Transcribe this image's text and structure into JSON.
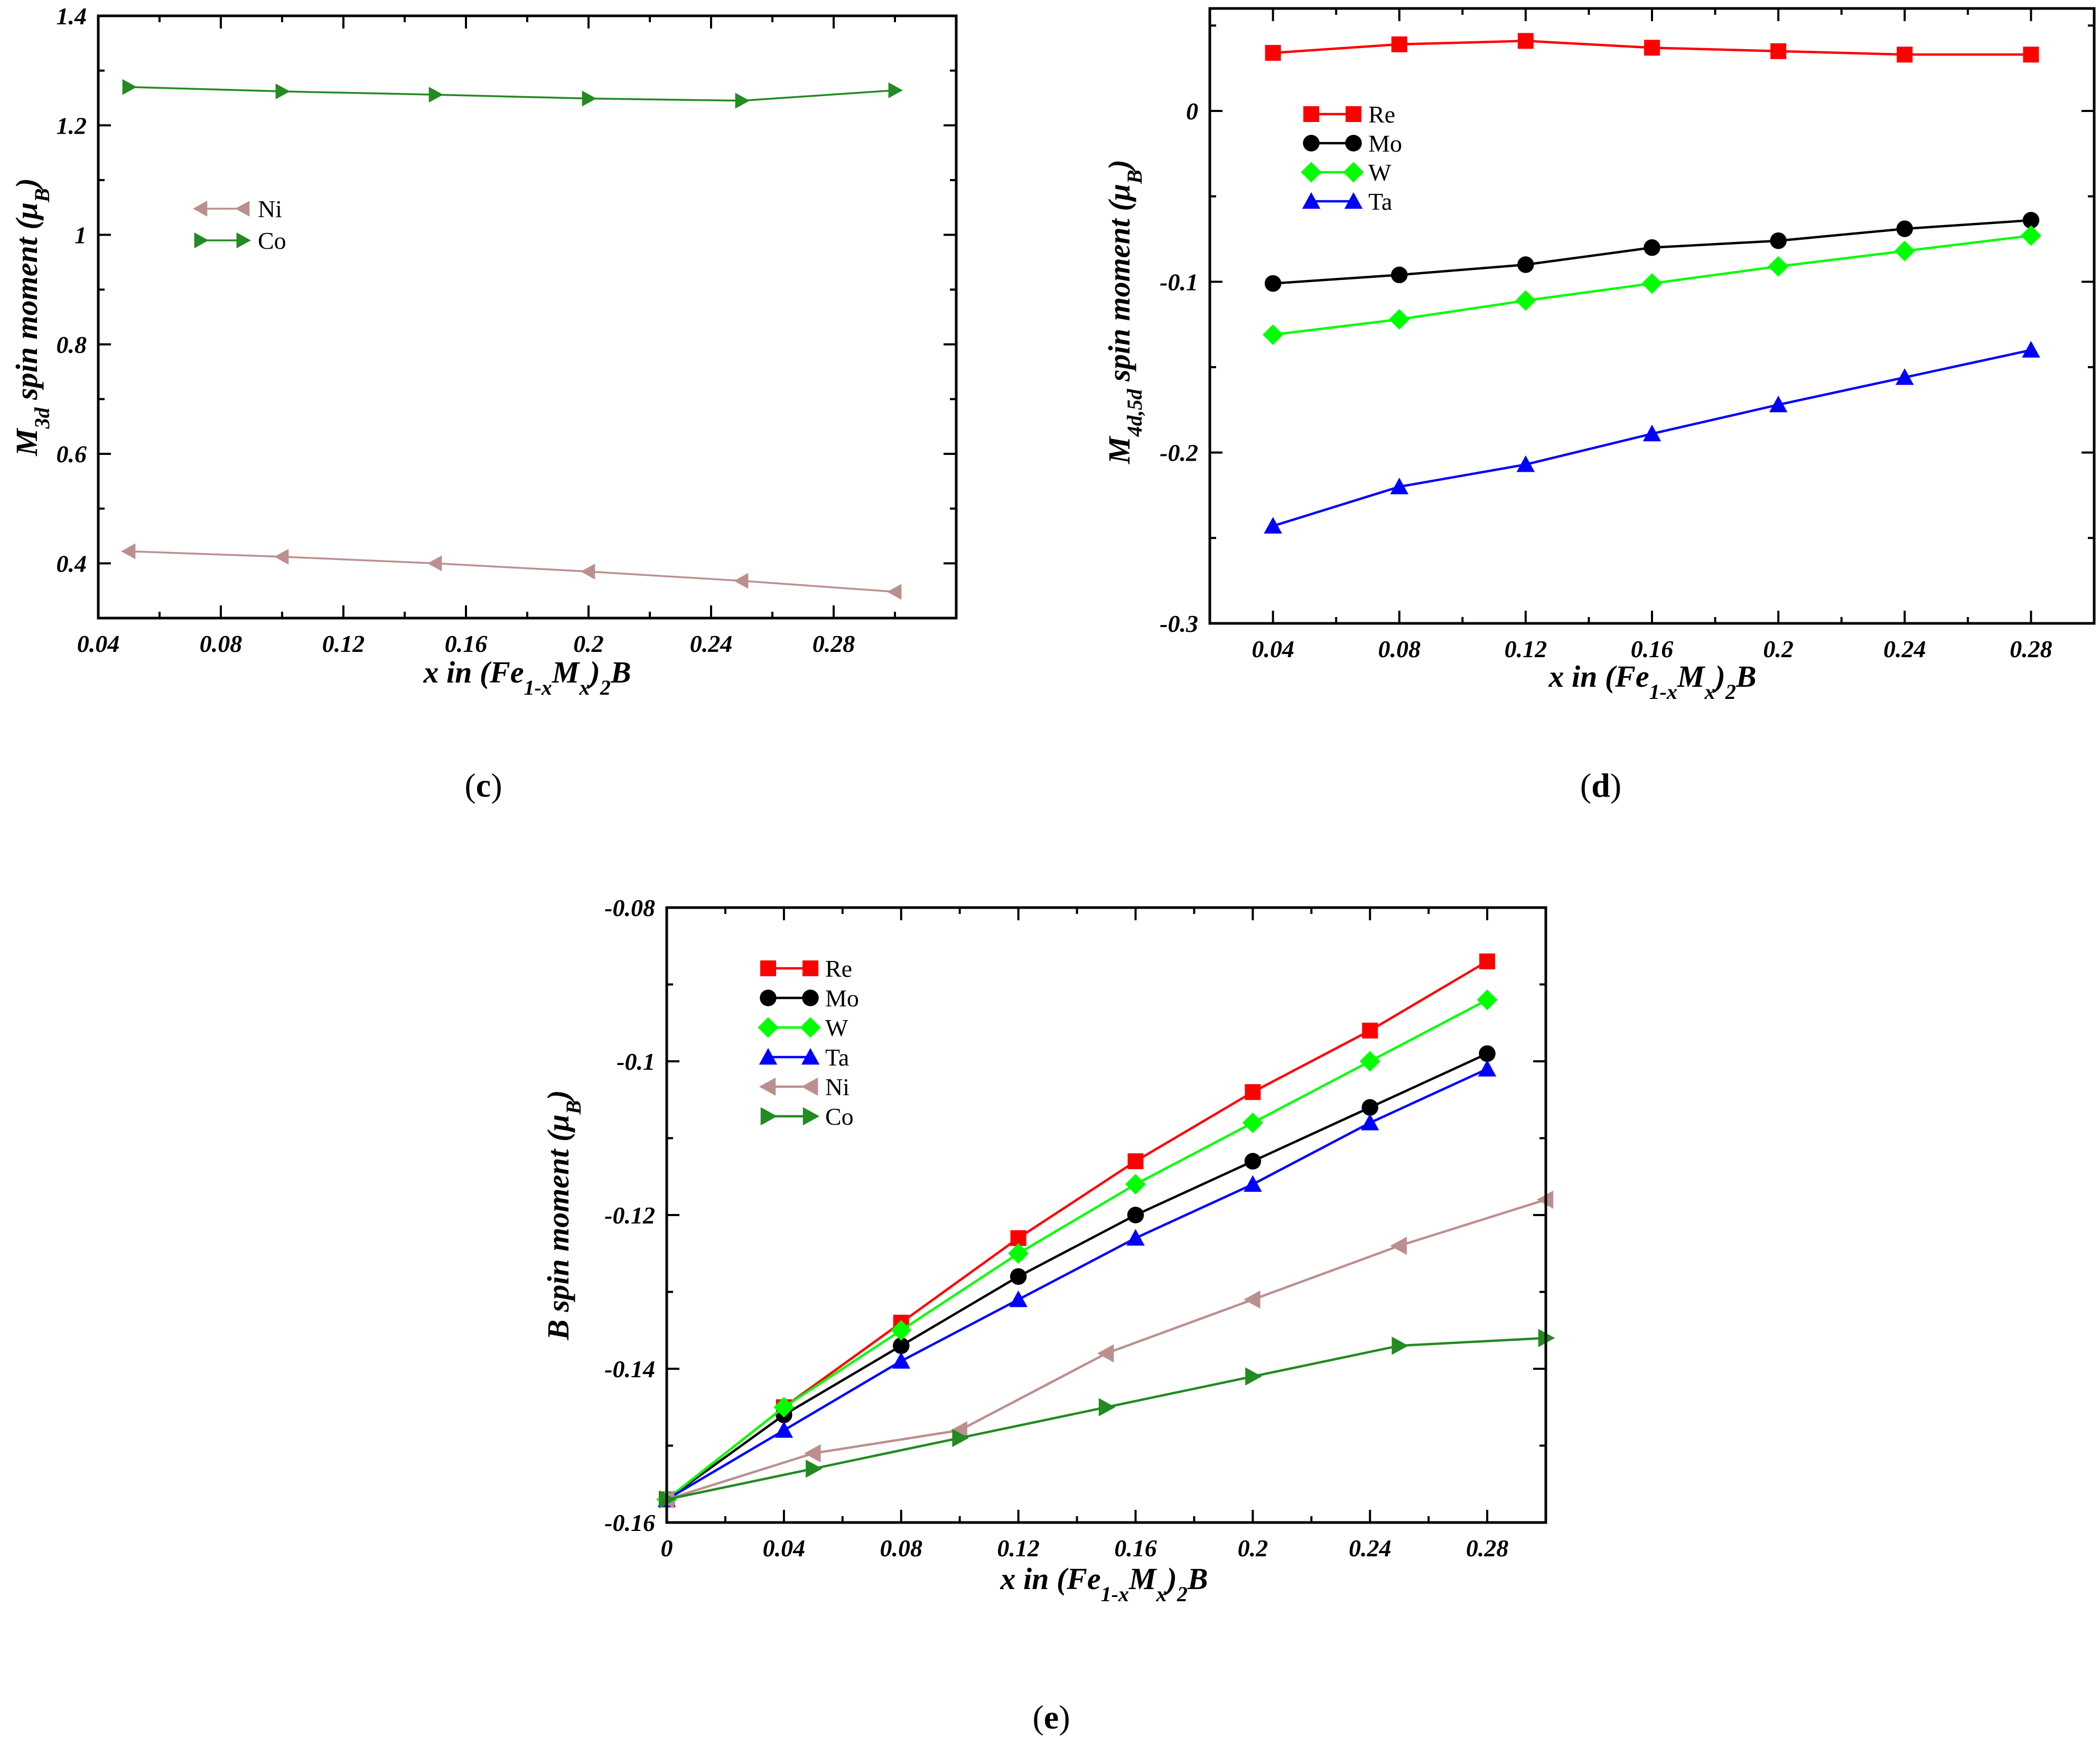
{
  "chart_data": [
    {
      "id": "c",
      "panel_label": "c",
      "type": "line",
      "xlabel": "x in (Fe1-xMx)2B",
      "ylabel": "M3d spin moment (μB)",
      "xlim": [
        0.04,
        0.32
      ],
      "ylim": [
        0.3,
        1.4
      ],
      "xticks": [
        0.04,
        0.08,
        0.12,
        0.16,
        0.2,
        0.24,
        0.28
      ],
      "xtick_labels": [
        "0.04",
        "0.08",
        "0.12",
        "0.16",
        "0.2",
        "0.24",
        "0.28"
      ],
      "yticks": [
        0.4,
        0.6,
        0.8,
        1.0,
        1.2,
        1.4
      ],
      "ytick_labels": [
        "0.4",
        "0.6",
        "0.8",
        "1",
        "1.2",
        "1.4"
      ],
      "legend": "upper-left",
      "series": [
        {
          "name": "Ni",
          "color": "#bc8f8f",
          "marker": "triangle-left",
          "x": [
            0.05,
            0.1,
            0.15,
            0.2,
            0.25,
            0.3
          ],
          "values": [
            0.422,
            0.412,
            0.4,
            0.385,
            0.368,
            0.348
          ]
        },
        {
          "name": "Co",
          "color": "#228b22",
          "marker": "triangle-right",
          "x": [
            0.05,
            0.1,
            0.15,
            0.2,
            0.25,
            0.3
          ],
          "values": [
            1.27,
            1.262,
            1.256,
            1.249,
            1.245,
            1.264
          ]
        }
      ]
    },
    {
      "id": "d",
      "panel_label": "d",
      "type": "line",
      "xlabel": "x in (Fe1-xMx)2B",
      "ylabel": "M4d,5d spin moment (μB)",
      "xlim": [
        0.02,
        0.3
      ],
      "ylim": [
        -0.3,
        0.06
      ],
      "xticks": [
        0.04,
        0.08,
        0.12,
        0.16,
        0.2,
        0.24,
        0.28
      ],
      "xtick_labels": [
        "0.04",
        "0.08",
        "0.12",
        "0.16",
        "0.2",
        "0.24",
        "0.28"
      ],
      "yticks": [
        0,
        -0.1,
        -0.2,
        -0.3
      ],
      "ytick_labels": [
        "0",
        "-0.1",
        "-0.2",
        "-0.3"
      ],
      "legend": "upper-left",
      "series": [
        {
          "name": "Re",
          "color": "#ff0000",
          "marker": "square",
          "x": [
            0.04,
            0.08,
            0.12,
            0.16,
            0.2,
            0.24,
            0.28
          ],
          "values": [
            0.034,
            0.039,
            0.041,
            0.037,
            0.035,
            0.033,
            0.033
          ]
        },
        {
          "name": "Mo",
          "color": "#000000",
          "marker": "circle",
          "x": [
            0.04,
            0.08,
            0.12,
            0.16,
            0.2,
            0.24,
            0.28
          ],
          "values": [
            -0.101,
            -0.096,
            -0.09,
            -0.08,
            -0.076,
            -0.069,
            -0.064
          ]
        },
        {
          "name": "W",
          "color": "#00ff00",
          "marker": "diamond",
          "x": [
            0.04,
            0.08,
            0.12,
            0.16,
            0.2,
            0.24,
            0.28
          ],
          "values": [
            -0.131,
            -0.122,
            -0.111,
            -0.101,
            -0.091,
            -0.082,
            -0.073
          ]
        },
        {
          "name": "Ta",
          "color": "#0000ff",
          "marker": "triangle-up",
          "x": [
            0.04,
            0.08,
            0.12,
            0.16,
            0.2,
            0.24,
            0.28
          ],
          "values": [
            -0.243,
            -0.22,
            -0.207,
            -0.189,
            -0.172,
            -0.156,
            -0.14
          ]
        }
      ]
    },
    {
      "id": "e",
      "panel_label": "e",
      "type": "line",
      "xlabel": "x in (Fe1-xMx)2B",
      "ylabel": "B spin moment (μB)",
      "xlim": [
        0,
        0.3
      ],
      "ylim": [
        -0.16,
        -0.08
      ],
      "xticks": [
        0,
        0.04,
        0.08,
        0.12,
        0.16,
        0.2,
        0.24,
        0.28
      ],
      "xtick_labels": [
        "0",
        "0.04",
        "0.08",
        "0.12",
        "0.16",
        "0.2",
        "0.24",
        "0.28"
      ],
      "yticks": [
        -0.08,
        -0.1,
        -0.12,
        -0.14,
        -0.16
      ],
      "ytick_labels": [
        "-0.08",
        "-0.1",
        "-0.12",
        "-0.14",
        "-0.16"
      ],
      "legend": "upper-left",
      "series": [
        {
          "name": "Re",
          "color": "#ff0000",
          "marker": "square",
          "x": [
            0,
            0.04,
            0.08,
            0.12,
            0.16,
            0.2,
            0.24,
            0.28
          ],
          "values": [
            -0.157,
            -0.145,
            -0.134,
            -0.123,
            -0.113,
            -0.104,
            -0.096,
            -0.087
          ]
        },
        {
          "name": "Mo",
          "color": "#000000",
          "marker": "circle",
          "x": [
            0,
            0.04,
            0.08,
            0.12,
            0.16,
            0.2,
            0.24,
            0.28
          ],
          "values": [
            -0.157,
            -0.146,
            -0.137,
            -0.128,
            -0.12,
            -0.113,
            -0.106,
            -0.099
          ]
        },
        {
          "name": "W",
          "color": "#00ff00",
          "marker": "diamond",
          "x": [
            0,
            0.04,
            0.08,
            0.12,
            0.16,
            0.2,
            0.24,
            0.28
          ],
          "values": [
            -0.157,
            -0.145,
            -0.135,
            -0.125,
            -0.116,
            -0.108,
            -0.1,
            -0.092
          ]
        },
        {
          "name": "Ta",
          "color": "#0000ff",
          "marker": "triangle-up",
          "x": [
            0,
            0.04,
            0.08,
            0.12,
            0.16,
            0.2,
            0.24,
            0.28
          ],
          "values": [
            -0.157,
            -0.148,
            -0.139,
            -0.131,
            -0.123,
            -0.116,
            -0.108,
            -0.101
          ]
        },
        {
          "name": "Ni",
          "color": "#bc8f8f",
          "marker": "triangle-left",
          "x": [
            0,
            0.05,
            0.1,
            0.15,
            0.2,
            0.25,
            0.3
          ],
          "values": [
            -0.157,
            -0.151,
            -0.148,
            -0.138,
            -0.131,
            -0.124,
            -0.118
          ]
        },
        {
          "name": "Co",
          "color": "#228b22",
          "marker": "triangle-right",
          "x": [
            0,
            0.05,
            0.1,
            0.15,
            0.2,
            0.25,
            0.3
          ],
          "values": [
            -0.157,
            -0.153,
            -0.149,
            -0.145,
            -0.141,
            -0.137,
            -0.136
          ]
        }
      ]
    }
  ]
}
